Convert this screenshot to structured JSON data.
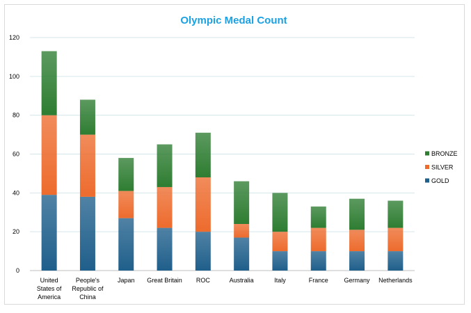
{
  "chart_data": {
    "type": "bar",
    "stacked": true,
    "title": "Olympic Medal Count",
    "xlabel": "",
    "ylabel": "",
    "ylim": [
      0,
      120
    ],
    "yticks": [
      0,
      20,
      40,
      60,
      80,
      100,
      120
    ],
    "grid": true,
    "legend": "right",
    "categories": [
      "United States of America",
      "People's Republic of China",
      "Japan",
      "Great Britain",
      "ROC",
      "Australia",
      "Italy",
      "France",
      "Germany",
      "Netherlands"
    ],
    "category_lines": [
      [
        "United",
        "States of",
        "America"
      ],
      [
        "People's",
        "Republic of",
        "China"
      ],
      [
        "Japan"
      ],
      [
        "Great Britain"
      ],
      [
        "ROC"
      ],
      [
        "Australia"
      ],
      [
        "Italy"
      ],
      [
        "France"
      ],
      [
        "Germany"
      ],
      [
        "Netherlands"
      ]
    ],
    "series": [
      {
        "name": "GOLD",
        "values": [
          39,
          38,
          27,
          22,
          20,
          17,
          10,
          10,
          10,
          10
        ],
        "color": "#1f5f8b"
      },
      {
        "name": "SILVER",
        "values": [
          41,
          32,
          14,
          21,
          28,
          7,
          10,
          12,
          11,
          12
        ],
        "color": "#ed6b2d"
      },
      {
        "name": "BRONZE",
        "values": [
          33,
          18,
          17,
          22,
          23,
          22,
          20,
          11,
          16,
          14
        ],
        "color": "#2e7d32"
      }
    ],
    "legend_order": [
      "BRONZE",
      "SILVER",
      "GOLD"
    ],
    "title_color": "#1ba1e2"
  }
}
